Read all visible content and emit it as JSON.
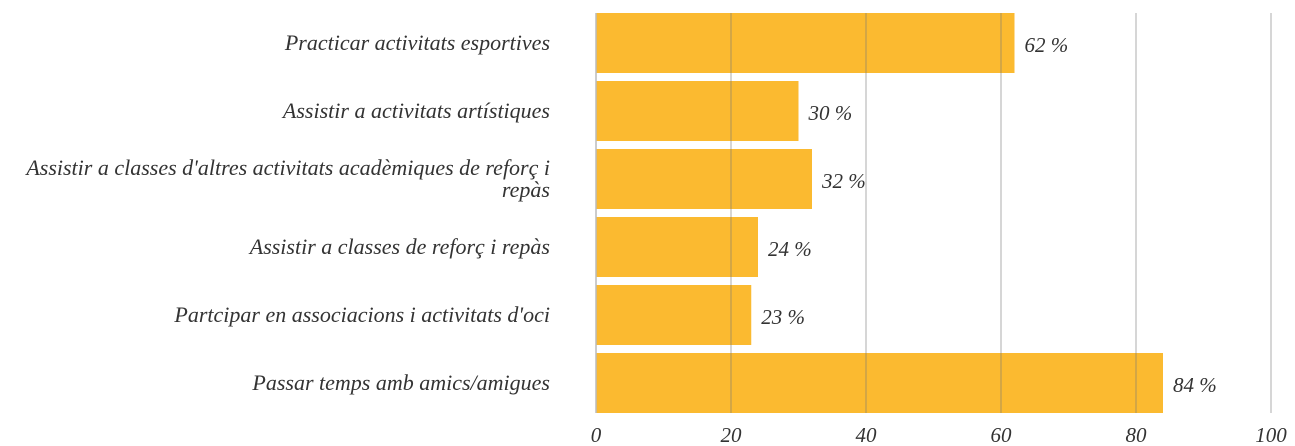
{
  "chart_data": {
    "type": "barh",
    "categories": [
      "Practicar activitats esportives",
      "Assistir a activitats artístiques",
      "Assistir a classes d'altres activitats acadèmiques de reforç i repàs",
      "Assistir a classes de reforç i repàs",
      "Partcipar en associacions i activitats d'oci",
      "Passar temps amb amics/amigues"
    ],
    "values": [
      62,
      30,
      32,
      24,
      23,
      84
    ],
    "value_labels": [
      "62 %",
      "30 %",
      "32 %",
      "24 %",
      "23 %",
      "84 %"
    ],
    "color": "#fbba30",
    "xlim": [
      0,
      100
    ],
    "xticks": [
      0,
      20,
      40,
      60,
      80,
      100
    ],
    "grid": true
  }
}
